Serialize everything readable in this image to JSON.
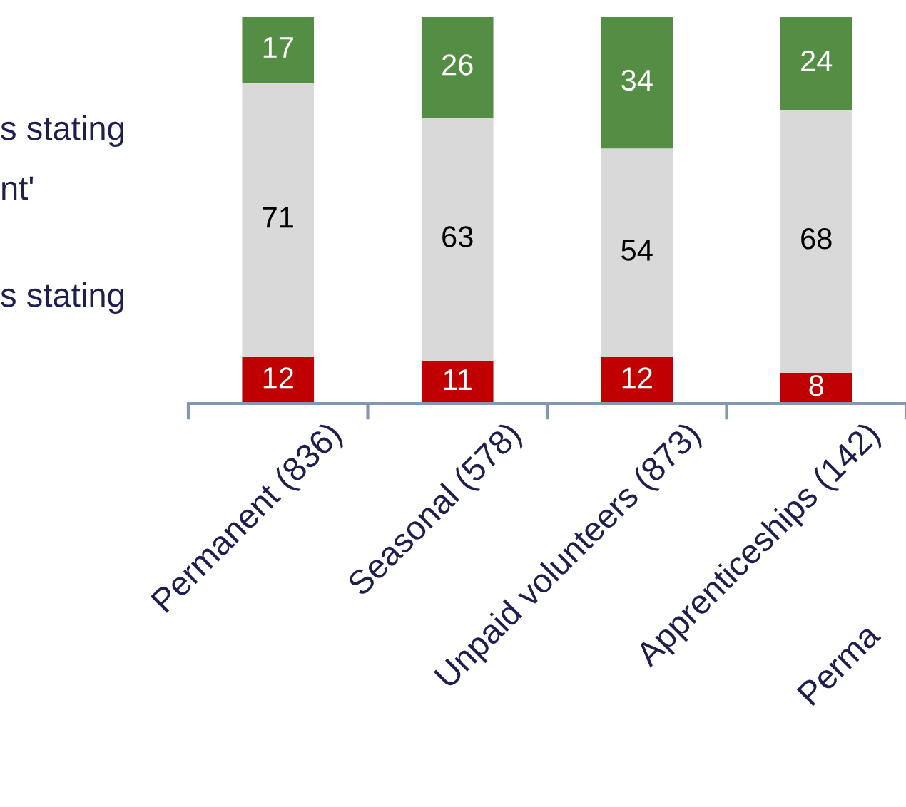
{
  "chart_data": {
    "type": "bar",
    "stacked": true,
    "data_labels": true,
    "tick_labels": "x",
    "ylim": [
      0,
      100
    ],
    "categories": [
      "Permanent (836)",
      "Seasonal (578)",
      "Unpaid volunteers (873)",
      "Apprenticeships (142)"
    ],
    "series": [
      {
        "color": "#c00000",
        "values": [
          12,
          11,
          12,
          8
        ]
      },
      {
        "color": "#d9d9d9",
        "values": [
          71,
          63,
          54,
          68
        ]
      },
      {
        "color": "#548d44",
        "values": [
          17,
          26,
          34,
          24
        ]
      }
    ],
    "annotations": [
      "s stating",
      "nt'",
      "s stating",
      "Perma"
    ]
  }
}
